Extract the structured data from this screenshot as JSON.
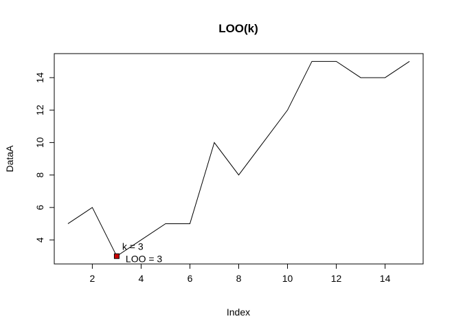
{
  "chart_data": {
    "type": "line",
    "title": "LOO(k)",
    "xlabel": "Index",
    "ylabel": "DataA",
    "x": [
      1,
      2,
      3,
      4,
      5,
      6,
      7,
      8,
      9,
      10,
      11,
      12,
      13,
      14,
      15
    ],
    "series": [
      {
        "values": [
          5,
          6,
          3,
          4,
          5,
          5,
          10,
          8,
          10,
          12,
          15,
          15,
          14,
          14,
          15
        ],
        "color": "#000000"
      }
    ],
    "xlim": [
      0.44,
      15.56
    ],
    "ylim": [
      2.52,
      15.48
    ],
    "xticks": [
      2,
      4,
      6,
      8,
      10,
      12,
      14
    ],
    "yticks": [
      4,
      6,
      8,
      10,
      12,
      14
    ],
    "grid": false,
    "highlight": {
      "x": 3,
      "y": 3,
      "color": "#cc0000"
    },
    "annotations": [
      {
        "text": "k =  3",
        "x": 3,
        "y": 3
      },
      {
        "text": "LOO =  3",
        "x": 3,
        "y": 3
      }
    ]
  }
}
